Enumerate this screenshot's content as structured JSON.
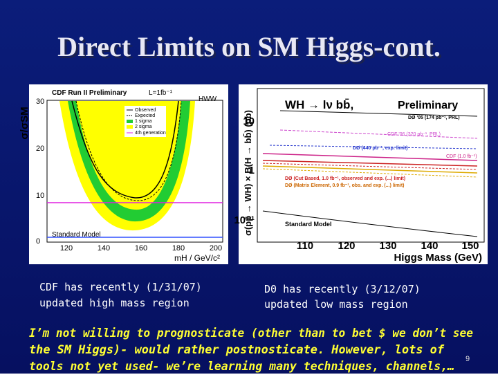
{
  "slide": {
    "title": "Direct Limits on SM Higgs-cont.",
    "left_figure": {
      "header": "CDF Run II Preliminary",
      "lumi": "L=1fb⁻¹",
      "channel": "HWW",
      "y_label": "σ/σSM",
      "x_label": "mH / GeV/c²",
      "yticks": [
        "0",
        "10",
        "20",
        "30"
      ],
      "xticks": [
        "120",
        "140",
        "160",
        "180",
        "200"
      ],
      "legend": [
        "Observed",
        "Expected",
        "1 sigma",
        "2 sigma",
        "4th generation"
      ],
      "reference": "Standard Model"
    },
    "right_figure": {
      "process": "WH → lν bb̄,",
      "status": "Preliminary",
      "y_label": "σ(pp̄ → WH) × B(H → bb̄) (pb)",
      "x_label": "Higgs Mass (GeV)",
      "yticks": [
        "10",
        "1",
        "10⁻¹"
      ],
      "xticks": [
        "110",
        "120",
        "130",
        "140",
        "150"
      ],
      "legend": [
        "DØ '05 (174 pb⁻¹, PRL)",
        "CDF '06 (320 pb⁻¹, PRL)",
        "DØ (440 pb⁻¹, exp. limit)",
        "CDF (1.0 fb⁻¹)",
        "DØ (Cut Based, 1.0 fb⁻¹, observed and exp. (...) limit)",
        "DØ (Matrix Element, 0.9 fb⁻¹, obs. and exp. (...) limit)"
      ],
      "reference": "Standard Model"
    },
    "left_caption": [
      "CDF has recently (1/31/07)",
      "updated high mass region"
    ],
    "right_caption": [
      "D0 has recently (3/12/07)",
      "updated low mass region"
    ],
    "body": [
      "I’m not willing to prognosticate (other than to bet $ we don’t see",
      "the SM Higgs)- would rather postnosticate. However, lots of",
      "tools not yet used- we’re learning many techniques, channels,…"
    ],
    "page_number": "9"
  }
}
